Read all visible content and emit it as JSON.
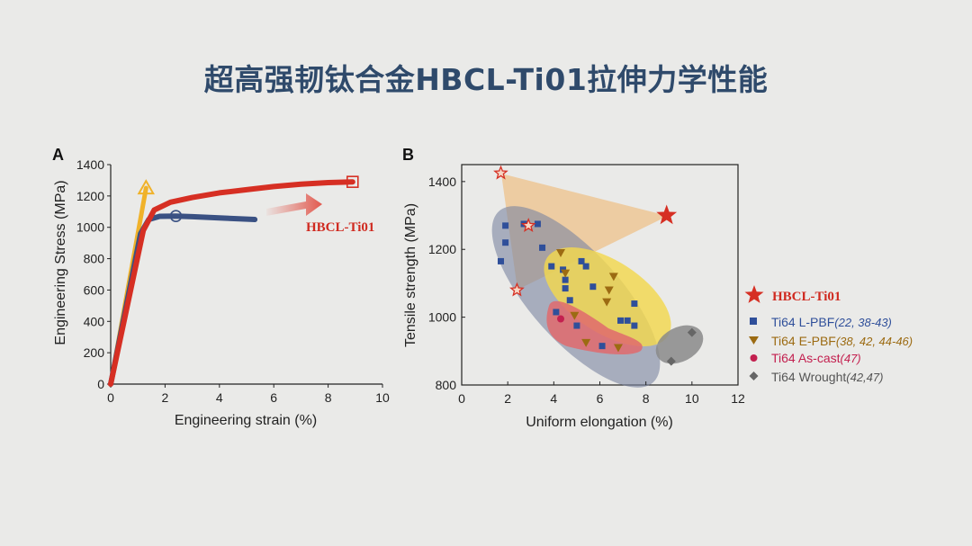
{
  "title": "超高强韧钛合金HBCL-Ti01拉伸力学性能",
  "colors": {
    "red": "#d62f23",
    "blue": "#3a5183",
    "orange": "#f0b22a",
    "lpbf": "#2f4f9a",
    "ebf": "#9c6b12",
    "ascast": "#c3204f",
    "wrought": "#666666"
  },
  "chart_data": [
    {
      "panel": "A",
      "type": "line",
      "xlabel": "Engineering strain (%)",
      "ylabel": "Engineering Stress (MPa)",
      "xlim": [
        0,
        10
      ],
      "ylim": [
        0,
        1400
      ],
      "xticks": [
        "0",
        "2",
        "4",
        "6",
        "8",
        "10"
      ],
      "yticks": [
        "0",
        "200",
        "400",
        "600",
        "800",
        "1000",
        "1200",
        "1400"
      ],
      "series": [
        {
          "name": "HBCL-Ti01",
          "x": [
            0,
            1.2,
            1.6,
            2.2,
            3.0,
            4.0,
            5.0,
            6.0,
            7.0,
            8.0,
            8.9
          ],
          "y": [
            0,
            980,
            1110,
            1160,
            1190,
            1220,
            1240,
            1260,
            1275,
            1285,
            1290
          ]
        },
        {
          "x": [
            0,
            1.1,
            1.4,
            1.8,
            2.4,
            3.0,
            4.0,
            5.3
          ],
          "y": [
            0,
            960,
            1050,
            1070,
            1072,
            1068,
            1060,
            1050
          ]
        },
        {
          "x": [
            0,
            1.3
          ],
          "y": [
            0,
            1250
          ]
        }
      ],
      "annotations": [
        "HBCL-Ti01"
      ]
    },
    {
      "panel": "B",
      "type": "scatter",
      "xlabel": "Uniform elongation (%)",
      "ylabel": "Tensile strength (MPa)",
      "xlim": [
        0,
        12
      ],
      "ylim": [
        800,
        1450
      ],
      "xticks": [
        "0",
        "2",
        "4",
        "6",
        "8",
        "10",
        "12"
      ],
      "yticks": [
        "800",
        "1000",
        "1200",
        "1400"
      ],
      "series": [
        {
          "name": "HBCL-Ti01",
          "marker": "star",
          "points": [
            [
              8.9,
              1300
            ]
          ]
        },
        {
          "name": "Ti64 L-PBF",
          "ref": "(22, 38-43)",
          "marker": "square",
          "points": [
            [
              1.9,
              1270
            ],
            [
              2.7,
              1275
            ],
            [
              3.3,
              1275
            ],
            [
              1.9,
              1220
            ],
            [
              1.7,
              1165
            ],
            [
              3.5,
              1205
            ],
            [
              3.9,
              1150
            ],
            [
              4.4,
              1140
            ],
            [
              4.5,
              1110
            ],
            [
              4.5,
              1085
            ],
            [
              4.7,
              1050
            ],
            [
              5.2,
              1165
            ],
            [
              5.4,
              1150
            ],
            [
              5.7,
              1090
            ],
            [
              5.0,
              975
            ],
            [
              4.1,
              1015
            ],
            [
              6.1,
              915
            ],
            [
              6.9,
              990
            ],
            [
              7.2,
              990
            ],
            [
              7.5,
              975
            ],
            [
              7.5,
              1040
            ]
          ]
        },
        {
          "name": "Ti64 E-PBF",
          "ref": "(38, 42, 44-46)",
          "marker": "triangle-down",
          "points": [
            [
              4.3,
              1190
            ],
            [
              4.5,
              1130
            ],
            [
              4.9,
              1005
            ],
            [
              5.4,
              925
            ],
            [
              6.4,
              1080
            ],
            [
              6.6,
              1120
            ],
            [
              6.3,
              1045
            ],
            [
              6.8,
              910
            ]
          ]
        },
        {
          "name": "Ti64 As-cast",
          "ref": "(47)",
          "marker": "circle",
          "points": [
            [
              4.3,
              995
            ]
          ]
        },
        {
          "name": "Ti64 Wrought",
          "ref": "(42,47)",
          "marker": "diamond",
          "points": [
            [
              9.1,
              870
            ],
            [
              10.0,
              955
            ]
          ]
        },
        {
          "marker": "star-outline",
          "points": [
            [
              1.7,
              1425
            ],
            [
              2.4,
              1080
            ],
            [
              2.9,
              1270
            ]
          ]
        }
      ],
      "legend_position": "right"
    }
  ]
}
